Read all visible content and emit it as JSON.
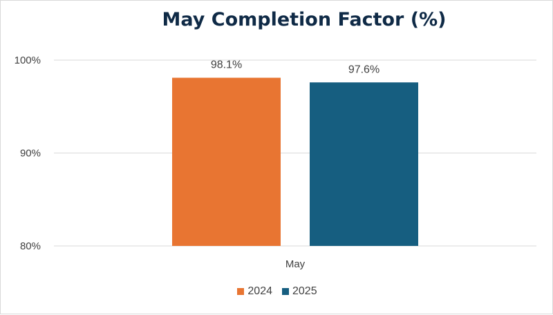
{
  "chart_data": {
    "type": "bar",
    "title": "May Completion Factor (%)",
    "categories": [
      "May"
    ],
    "series": [
      {
        "name": "2024",
        "values": [
          98.1
        ],
        "labels": [
          "98.1%"
        ],
        "color": "#e87532"
      },
      {
        "name": "2025",
        "values": [
          97.6
        ],
        "labels": [
          "97.6%"
        ],
        "color": "#165e80"
      }
    ],
    "ylim": [
      80,
      100
    ],
    "yticks": [
      {
        "value": 100,
        "label": "100%"
      },
      {
        "value": 90,
        "label": "90%"
      },
      {
        "value": 80,
        "label": "80%"
      }
    ],
    "grid": true,
    "legend": "bottom",
    "colors": {
      "title": "#0f2a46",
      "grid": "#d9d9d9",
      "text": "#404040"
    }
  }
}
